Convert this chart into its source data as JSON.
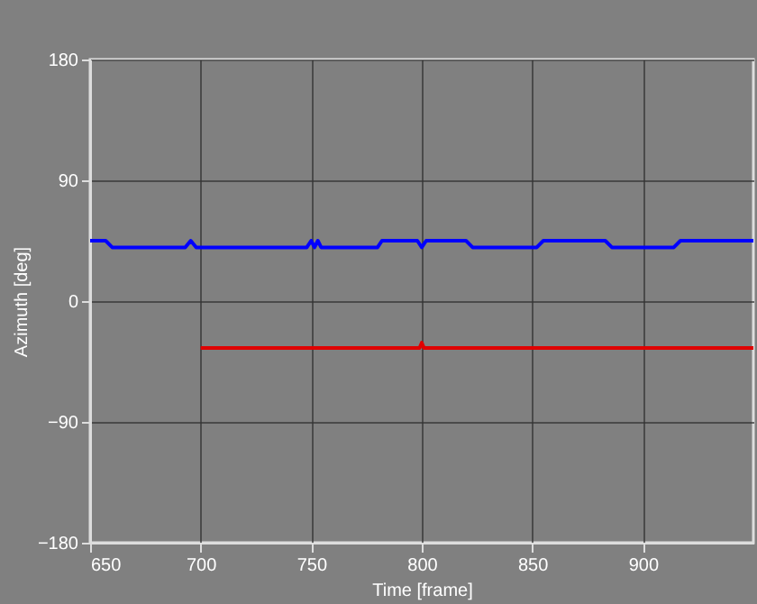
{
  "chart_data": {
    "type": "line",
    "xlabel": "Time [frame]",
    "ylabel": "Azimuth [deg]",
    "xlim": [
      650,
      950
    ],
    "xticks": [
      650,
      700,
      750,
      800,
      850,
      900
    ],
    "ylim": [
      -180,
      180
    ],
    "yticks": [
      -180,
      -90,
      0,
      90,
      180
    ],
    "grid": true,
    "series": [
      {
        "color": "#0000ff",
        "x": [
          650,
          657,
          660,
          693,
          695.5,
          698,
          748,
          750,
          751.5,
          753,
          754.5,
          756,
          780,
          782,
          798,
          800,
          802,
          820,
          823,
          852,
          855,
          883,
          886,
          914,
          917,
          950
        ],
        "values": [
          45,
          45,
          40,
          40,
          45,
          40,
          40,
          45,
          40,
          45,
          40,
          40,
          40,
          45,
          45,
          40,
          45,
          45,
          40,
          40,
          45,
          45,
          40,
          40,
          45,
          45
        ]
      },
      {
        "color": "#e00000",
        "x": [
          700,
          799,
          800,
          801,
          950
        ],
        "values": [
          -35,
          -35,
          -31,
          -35,
          -35
        ]
      }
    ]
  }
}
